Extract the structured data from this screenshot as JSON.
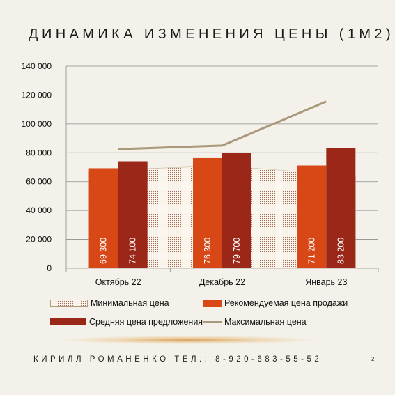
{
  "title": "ДИНАМИКА ИЗМЕНЕНИЯ ЦЕНЫ (1М2)",
  "footer": "КИРИЛЛ РОМАНЕНКО ТЕЛ.: 8-920-683-55-52",
  "page_number": "2",
  "colors": {
    "min": "#fbf7ef",
    "min_dots": "#a46a52",
    "recommended": "#d84716",
    "average": "#9b2719",
    "max": "#a99879",
    "grid": "#8c8c8c"
  },
  "chart_data": {
    "type": "bar",
    "categories": [
      "Октябрь 22",
      "Декабрь 22",
      "Январь 23"
    ],
    "ylim": [
      0,
      140000
    ],
    "yticks": [
      0,
      20000,
      40000,
      60000,
      80000,
      100000,
      120000,
      140000
    ],
    "ytick_labels": [
      "0",
      "20 000",
      "40 000",
      "60 000",
      "80 000",
      "100 000",
      "120 000",
      "140 000"
    ],
    "grid": true,
    "legend_position": "bottom",
    "series": [
      {
        "name": "Минимальная цена",
        "kind": "area",
        "values": [
          67500,
          71000,
          64000
        ]
      },
      {
        "name": "Рекомендуемая цена продажи",
        "kind": "bar",
        "values": [
          69300,
          76300,
          71200
        ],
        "labels": [
          "69 300",
          "76 300",
          "71 200"
        ]
      },
      {
        "name": "Средняя цена предложения",
        "kind": "bar",
        "values": [
          74100,
          79700,
          83200
        ],
        "labels": [
          "74 100",
          "79 700",
          "83 200"
        ]
      },
      {
        "name": "Максимальная цена",
        "kind": "line",
        "values": [
          82500,
          85000,
          115500
        ]
      }
    ]
  }
}
